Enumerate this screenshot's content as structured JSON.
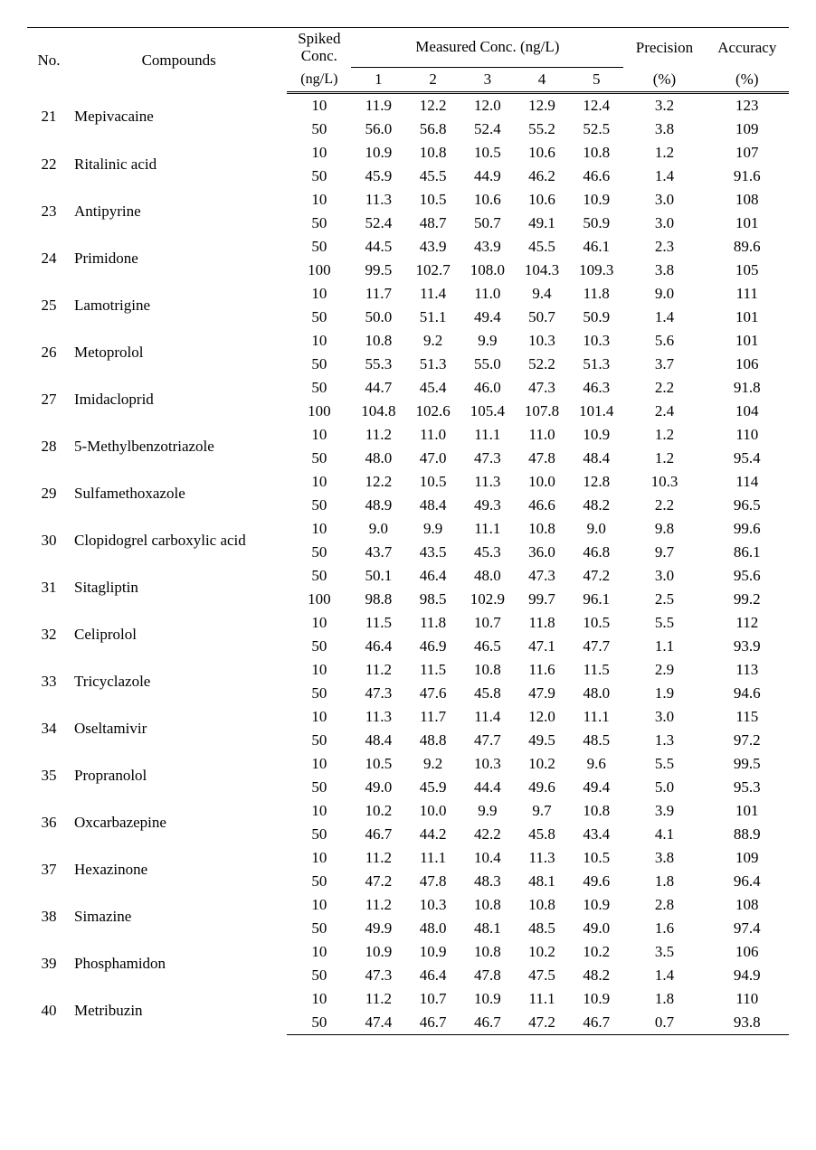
{
  "headers": {
    "no": "No.",
    "compounds": "Compounds",
    "spiked_line1": "Spiked",
    "spiked_line2": "Conc.",
    "spiked_line3": "(ng/L)",
    "measured": "Measured Conc. (ng/L)",
    "m1": "1",
    "m2": "2",
    "m3": "3",
    "m4": "4",
    "m5": "5",
    "precision_line1": "Precision",
    "precision_line2": "(%)",
    "accuracy_line1": "Accuracy",
    "accuracy_line2": "(%)"
  },
  "col_widths_pct": {
    "no": 5,
    "compound": 27,
    "spiked": 8,
    "m": 7.2,
    "precision": 10,
    "accuracy": 10
  },
  "rows": [
    {
      "no": "21",
      "compound": "Mepivacaine",
      "r": [
        {
          "spiked": "10",
          "m1": "11.9",
          "m2": "12.2",
          "m3": "12.0",
          "m4": "12.9",
          "m5": "12.4",
          "prec": "3.2",
          "acc": "123"
        },
        {
          "spiked": "50",
          "m1": "56.0",
          "m2": "56.8",
          "m3": "52.4",
          "m4": "55.2",
          "m5": "52.5",
          "prec": "3.8",
          "acc": "109"
        }
      ]
    },
    {
      "no": "22",
      "compound": "Ritalinic acid",
      "r": [
        {
          "spiked": "10",
          "m1": "10.9",
          "m2": "10.8",
          "m3": "10.5",
          "m4": "10.6",
          "m5": "10.8",
          "prec": "1.2",
          "acc": "107"
        },
        {
          "spiked": "50",
          "m1": "45.9",
          "m2": "45.5",
          "m3": "44.9",
          "m4": "46.2",
          "m5": "46.6",
          "prec": "1.4",
          "acc": "91.6"
        }
      ]
    },
    {
      "no": "23",
      "compound": "Antipyrine",
      "r": [
        {
          "spiked": "10",
          "m1": "11.3",
          "m2": "10.5",
          "m3": "10.6",
          "m4": "10.6",
          "m5": "10.9",
          "prec": "3.0",
          "acc": "108"
        },
        {
          "spiked": "50",
          "m1": "52.4",
          "m2": "48.7",
          "m3": "50.7",
          "m4": "49.1",
          "m5": "50.9",
          "prec": "3.0",
          "acc": "101"
        }
      ]
    },
    {
      "no": "24",
      "compound": "Primidone",
      "r": [
        {
          "spiked": "50",
          "m1": "44.5",
          "m2": "43.9",
          "m3": "43.9",
          "m4": "45.5",
          "m5": "46.1",
          "prec": "2.3",
          "acc": "89.6"
        },
        {
          "spiked": "100",
          "m1": "99.5",
          "m2": "102.7",
          "m3": "108.0",
          "m4": "104.3",
          "m5": "109.3",
          "prec": "3.8",
          "acc": "105"
        }
      ]
    },
    {
      "no": "25",
      "compound": "Lamotrigine",
      "r": [
        {
          "spiked": "10",
          "m1": "11.7",
          "m2": "11.4",
          "m3": "11.0",
          "m4": "9.4",
          "m5": "11.8",
          "prec": "9.0",
          "acc": "111"
        },
        {
          "spiked": "50",
          "m1": "50.0",
          "m2": "51.1",
          "m3": "49.4",
          "m4": "50.7",
          "m5": "50.9",
          "prec": "1.4",
          "acc": "101"
        }
      ]
    },
    {
      "no": "26",
      "compound": "Metoprolol",
      "r": [
        {
          "spiked": "10",
          "m1": "10.8",
          "m2": "9.2",
          "m3": "9.9",
          "m4": "10.3",
          "m5": "10.3",
          "prec": "5.6",
          "acc": "101"
        },
        {
          "spiked": "50",
          "m1": "55.3",
          "m2": "51.3",
          "m3": "55.0",
          "m4": "52.2",
          "m5": "51.3",
          "prec": "3.7",
          "acc": "106"
        }
      ]
    },
    {
      "no": "27",
      "compound": "Imidacloprid",
      "r": [
        {
          "spiked": "50",
          "m1": "44.7",
          "m2": "45.4",
          "m3": "46.0",
          "m4": "47.3",
          "m5": "46.3",
          "prec": "2.2",
          "acc": "91.8"
        },
        {
          "spiked": "100",
          "m1": "104.8",
          "m2": "102.6",
          "m3": "105.4",
          "m4": "107.8",
          "m5": "101.4",
          "prec": "2.4",
          "acc": "104"
        }
      ]
    },
    {
      "no": "28",
      "compound": "5-Methylbenzotriazole",
      "r": [
        {
          "spiked": "10",
          "m1": "11.2",
          "m2": "11.0",
          "m3": "11.1",
          "m4": "11.0",
          "m5": "10.9",
          "prec": "1.2",
          "acc": "110"
        },
        {
          "spiked": "50",
          "m1": "48.0",
          "m2": "47.0",
          "m3": "47.3",
          "m4": "47.8",
          "m5": "48.4",
          "prec": "1.2",
          "acc": "95.4"
        }
      ]
    },
    {
      "no": "29",
      "compound": "Sulfamethoxazole",
      "r": [
        {
          "spiked": "10",
          "m1": "12.2",
          "m2": "10.5",
          "m3": "11.3",
          "m4": "10.0",
          "m5": "12.8",
          "prec": "10.3",
          "acc": "114"
        },
        {
          "spiked": "50",
          "m1": "48.9",
          "m2": "48.4",
          "m3": "49.3",
          "m4": "46.6",
          "m5": "48.2",
          "prec": "2.2",
          "acc": "96.5"
        }
      ]
    },
    {
      "no": "30",
      "compound": "Clopidogrel carboxylic acid",
      "r": [
        {
          "spiked": "10",
          "m1": "9.0",
          "m2": "9.9",
          "m3": "11.1",
          "m4": "10.8",
          "m5": "9.0",
          "prec": "9.8",
          "acc": "99.6"
        },
        {
          "spiked": "50",
          "m1": "43.7",
          "m2": "43.5",
          "m3": "45.3",
          "m4": "36.0",
          "m5": "46.8",
          "prec": "9.7",
          "acc": "86.1"
        }
      ]
    },
    {
      "no": "31",
      "compound": "Sitagliptin",
      "r": [
        {
          "spiked": "50",
          "m1": "50.1",
          "m2": "46.4",
          "m3": "48.0",
          "m4": "47.3",
          "m5": "47.2",
          "prec": "3.0",
          "acc": "95.6"
        },
        {
          "spiked": "100",
          "m1": "98.8",
          "m2": "98.5",
          "m3": "102.9",
          "m4": "99.7",
          "m5": "96.1",
          "prec": "2.5",
          "acc": "99.2"
        }
      ]
    },
    {
      "no": "32",
      "compound": "Celiprolol",
      "r": [
        {
          "spiked": "10",
          "m1": "11.5",
          "m2": "11.8",
          "m3": "10.7",
          "m4": "11.8",
          "m5": "10.5",
          "prec": "5.5",
          "acc": "112"
        },
        {
          "spiked": "50",
          "m1": "46.4",
          "m2": "46.9",
          "m3": "46.5",
          "m4": "47.1",
          "m5": "47.7",
          "prec": "1.1",
          "acc": "93.9"
        }
      ]
    },
    {
      "no": "33",
      "compound": "Tricyclazole",
      "r": [
        {
          "spiked": "10",
          "m1": "11.2",
          "m2": "11.5",
          "m3": "10.8",
          "m4": "11.6",
          "m5": "11.5",
          "prec": "2.9",
          "acc": "113"
        },
        {
          "spiked": "50",
          "m1": "47.3",
          "m2": "47.6",
          "m3": "45.8",
          "m4": "47.9",
          "m5": "48.0",
          "prec": "1.9",
          "acc": "94.6"
        }
      ]
    },
    {
      "no": "34",
      "compound": "Oseltamivir",
      "r": [
        {
          "spiked": "10",
          "m1": "11.3",
          "m2": "11.7",
          "m3": "11.4",
          "m4": "12.0",
          "m5": "11.1",
          "prec": "3.0",
          "acc": "115"
        },
        {
          "spiked": "50",
          "m1": "48.4",
          "m2": "48.8",
          "m3": "47.7",
          "m4": "49.5",
          "m5": "48.5",
          "prec": "1.3",
          "acc": "97.2"
        }
      ]
    },
    {
      "no": "35",
      "compound": "Propranolol",
      "r": [
        {
          "spiked": "10",
          "m1": "10.5",
          "m2": "9.2",
          "m3": "10.3",
          "m4": "10.2",
          "m5": "9.6",
          "prec": "5.5",
          "acc": "99.5"
        },
        {
          "spiked": "50",
          "m1": "49.0",
          "m2": "45.9",
          "m3": "44.4",
          "m4": "49.6",
          "m5": "49.4",
          "prec": "5.0",
          "acc": "95.3"
        }
      ]
    },
    {
      "no": "36",
      "compound": "Oxcarbazepine",
      "r": [
        {
          "spiked": "10",
          "m1": "10.2",
          "m2": "10.0",
          "m3": "9.9",
          "m4": "9.7",
          "m5": "10.8",
          "prec": "3.9",
          "acc": "101"
        },
        {
          "spiked": "50",
          "m1": "46.7",
          "m2": "44.2",
          "m3": "42.2",
          "m4": "45.8",
          "m5": "43.4",
          "prec": "4.1",
          "acc": "88.9"
        }
      ]
    },
    {
      "no": "37",
      "compound": "Hexazinone",
      "r": [
        {
          "spiked": "10",
          "m1": "11.2",
          "m2": "11.1",
          "m3": "10.4",
          "m4": "11.3",
          "m5": "10.5",
          "prec": "3.8",
          "acc": "109"
        },
        {
          "spiked": "50",
          "m1": "47.2",
          "m2": "47.8",
          "m3": "48.3",
          "m4": "48.1",
          "m5": "49.6",
          "prec": "1.8",
          "acc": "96.4"
        }
      ]
    },
    {
      "no": "38",
      "compound": "Simazine",
      "r": [
        {
          "spiked": "10",
          "m1": "11.2",
          "m2": "10.3",
          "m3": "10.8",
          "m4": "10.8",
          "m5": "10.9",
          "prec": "2.8",
          "acc": "108"
        },
        {
          "spiked": "50",
          "m1": "49.9",
          "m2": "48.0",
          "m3": "48.1",
          "m4": "48.5",
          "m5": "49.0",
          "prec": "1.6",
          "acc": "97.4"
        }
      ]
    },
    {
      "no": "39",
      "compound": "Phosphamidon",
      "r": [
        {
          "spiked": "10",
          "m1": "10.9",
          "m2": "10.9",
          "m3": "10.8",
          "m4": "10.2",
          "m5": "10.2",
          "prec": "3.5",
          "acc": "106"
        },
        {
          "spiked": "50",
          "m1": "47.3",
          "m2": "46.4",
          "m3": "47.8",
          "m4": "47.5",
          "m5": "48.2",
          "prec": "1.4",
          "acc": "94.9"
        }
      ]
    },
    {
      "no": "40",
      "compound": "Metribuzin",
      "r": [
        {
          "spiked": "10",
          "m1": "11.2",
          "m2": "10.7",
          "m3": "10.9",
          "m4": "11.1",
          "m5": "10.9",
          "prec": "1.8",
          "acc": "110"
        },
        {
          "spiked": "50",
          "m1": "47.4",
          "m2": "46.7",
          "m3": "46.7",
          "m4": "47.2",
          "m5": "46.7",
          "prec": "0.7",
          "acc": "93.8"
        }
      ]
    }
  ]
}
